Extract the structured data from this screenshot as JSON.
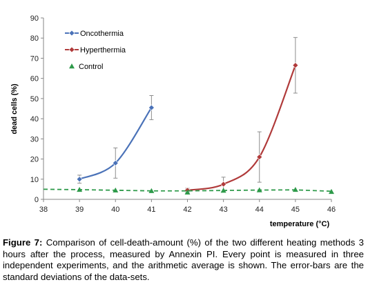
{
  "chart_data": {
    "type": "line",
    "xlabel": "temperature (°C)",
    "ylabel": "dead cells (%)",
    "xlim": [
      38,
      46
    ],
    "ylim": [
      0,
      90
    ],
    "x_ticks": [
      38,
      39,
      40,
      41,
      42,
      43,
      44,
      45,
      46
    ],
    "y_ticks": [
      0,
      10,
      20,
      30,
      40,
      50,
      60,
      70,
      80,
      90
    ],
    "grid": false,
    "legend_position": "top-left",
    "series": [
      {
        "name": "Oncothermia",
        "color": "#4a72b8",
        "marker": "diamond",
        "line": "smooth-solid",
        "x": [
          39,
          40,
          41
        ],
        "y": [
          10,
          18,
          45.5
        ],
        "error": [
          2,
          7.5,
          6
        ]
      },
      {
        "name": "Hyperthermia",
        "color": "#b03a3a",
        "marker": "diamond",
        "line": "smooth-solid",
        "x": [
          42,
          43,
          44,
          45
        ],
        "y": [
          4.5,
          7.5,
          21,
          66.5
        ],
        "error": [
          1,
          3.5,
          12.5,
          13.8
        ]
      },
      {
        "name": "Control",
        "color": "#2e9a4a",
        "marker": "triangle",
        "line": "dashed",
        "x": [
          38,
          39,
          40,
          41,
          42,
          43,
          44,
          45,
          46
        ],
        "y": [
          5,
          4.8,
          4.5,
          4.2,
          4.2,
          4.4,
          4.6,
          4.7,
          4
        ],
        "points_x": [
          39,
          40,
          41,
          42,
          43,
          44,
          45,
          46
        ],
        "points_y": [
          4.8,
          4.5,
          4.2,
          3.5,
          4.4,
          4.6,
          4.8,
          3.8
        ]
      }
    ]
  },
  "caption": {
    "label": "Figure 7:",
    "text": "Comparison of cell-death-amount (%) of the two different heating methods 3 hours after the process, measured by Annexin PI. Every point is measured in three independent experiments, and the arithmetic average is shown. The error-bars are the standard deviations of the data-sets."
  }
}
